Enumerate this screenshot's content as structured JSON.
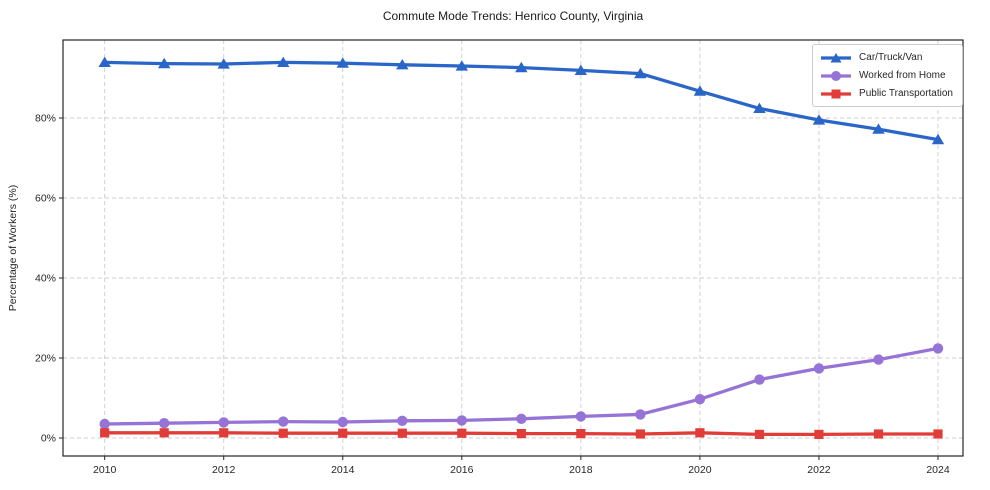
{
  "chart_data": {
    "type": "line",
    "title": "Commute Mode Trends: Henrico County, Virginia",
    "xlabel": "",
    "ylabel": "Percentage of Workers (%)",
    "x": [
      2010,
      2011,
      2012,
      2013,
      2014,
      2015,
      2016,
      2017,
      2018,
      2019,
      2020,
      2021,
      2022,
      2023,
      2024
    ],
    "xticks": [
      2010,
      2012,
      2014,
      2016,
      2018,
      2020,
      2022,
      2024
    ],
    "yticks": [
      0,
      20,
      40,
      60,
      80
    ],
    "ytick_suffix": "%",
    "xlim": [
      2009.3,
      2024.42
    ],
    "ylim": [
      -4.5,
      99.5
    ],
    "grid": true,
    "legend_position": "upper right",
    "colors": {
      "grid": "#cccccc",
      "axis": "#262626",
      "text": "#262626",
      "background": "#ffffff"
    },
    "series": [
      {
        "id": "car-truck-van",
        "name": "Car/Truck/Van",
        "color": "#2a65c8",
        "marker": "triangle",
        "values": [
          93.9,
          93.6,
          93.5,
          93.9,
          93.7,
          93.3,
          93.0,
          92.6,
          91.9,
          91.1,
          86.7,
          82.4,
          79.5,
          77.2,
          74.6
        ]
      },
      {
        "id": "worked-from-home",
        "name": "Worked from Home",
        "color": "#9673d6",
        "marker": "circle",
        "values": [
          3.5,
          3.7,
          3.9,
          4.1,
          4.0,
          4.3,
          4.4,
          4.8,
          5.4,
          5.9,
          9.7,
          14.6,
          17.4,
          19.6,
          22.4
        ]
      },
      {
        "id": "public-transportation",
        "name": "Public Transportation",
        "color": "#e03c38",
        "marker": "square",
        "values": [
          1.3,
          1.3,
          1.3,
          1.2,
          1.2,
          1.2,
          1.2,
          1.1,
          1.1,
          1.0,
          1.3,
          0.9,
          0.9,
          1.0,
          1.0
        ]
      }
    ]
  }
}
